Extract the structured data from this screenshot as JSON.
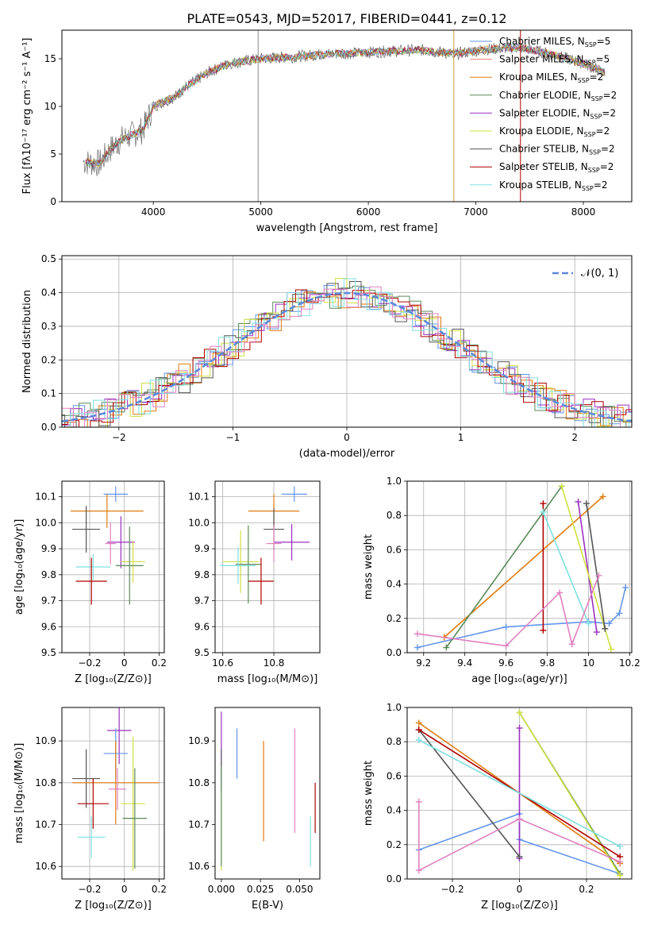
{
  "figure_title": "PLATE=0543, MJD=52017, FIBERID=0441, z=0.12",
  "colors": {
    "cornflower": "#6495ed",
    "salmon": "#fa8072",
    "orange": "#e07b10",
    "seagreen": "#5a8a5a",
    "purple": "#9b30c0",
    "yellow": "#d0e040",
    "darkgray": "#555555",
    "darkred": "#b00000",
    "cyan": "#80e0e0",
    "pink": "#e080c0",
    "grid": "#b0b0b0"
  },
  "chart_data": [
    {
      "id": "spectrum",
      "type": "line",
      "xlabel": "wavelength [Angstrom, rest frame]",
      "ylabel": "Flux [fλ10⁻¹⁷ erg cm⁻² s⁻¹ A⁻¹]",
      "xlim": [
        3150,
        8450
      ],
      "ylim": [
        0,
        18
      ],
      "xticks": [
        4000,
        5000,
        6000,
        7000,
        8000
      ],
      "yticks": [
        0,
        5,
        10,
        15
      ],
      "grid": false,
      "legend_position": "upper right",
      "observed": {
        "name": "",
        "x": [
          3350,
          3500,
          3600,
          3700,
          3800,
          3900,
          4000,
          4100,
          4200,
          4300,
          4500,
          4700,
          5000,
          5300,
          5600,
          5900,
          6200,
          6500,
          6800,
          7100,
          7400,
          7700,
          8000,
          8200
        ],
        "y": [
          4.2,
          4.0,
          5.5,
          6.5,
          7.0,
          7.5,
          10.0,
          10.5,
          11.0,
          12.0,
          13.5,
          14.5,
          15.0,
          15.2,
          15.5,
          15.6,
          15.8,
          15.9,
          15.5,
          16.0,
          16.2,
          15.5,
          14.5,
          13.5
        ]
      },
      "series": [
        {
          "name": "Chabrier MILES, N_SSP=5",
          "color": "#6495ed"
        },
        {
          "name": "Salpeter MILES, N_SSP=5",
          "color": "#fa8072"
        },
        {
          "name": "Kroupa MILES, N_SSP=2",
          "color": "#e07b10"
        },
        {
          "name": "Chabrier ELODIE, N_SSP=2",
          "color": "#5a8a5a"
        },
        {
          "name": "Salpeter ELODIE, N_SSP=2",
          "color": "#9b30c0"
        },
        {
          "name": "Kroupa ELODIE, N_SSP=2",
          "color": "#d0e040"
        },
        {
          "name": "Chabrier STELIB, N_SSP=2",
          "color": "#555555"
        },
        {
          "name": "Salpeter STELIB, N_SSP=2",
          "color": "#b00000"
        },
        {
          "name": "Kroupa STELIB, N_SSP=2",
          "color": "#80e0e0"
        }
      ]
    },
    {
      "id": "residuals",
      "type": "line",
      "xlabel": "(data-model)/error",
      "ylabel": "Normed distribution",
      "xlim": [
        -2.5,
        2.5
      ],
      "ylim": [
        0,
        0.51
      ],
      "xticks": [
        -2,
        -1,
        0,
        1,
        2
      ],
      "yticks": [
        0.0,
        0.1,
        0.2,
        0.3,
        0.4,
        0.5
      ],
      "grid": true,
      "legend": "𝒩(0, 1)",
      "legend_position": "upper right",
      "gaussian": {
        "mu": 0,
        "sigma": 1
      }
    },
    {
      "id": "age_vs_Z",
      "type": "scatter",
      "xlabel": "Z [log₁₀(Z/Z⊙)]",
      "ylabel": "age  [log₁₀(age/yr)]",
      "xlim": [
        -0.36,
        0.23
      ],
      "ylim": [
        9.5,
        10.16
      ],
      "xticks": [
        -0.2,
        0.0,
        0.2
      ],
      "yticks": [
        9.5,
        9.6,
        9.7,
        9.8,
        9.9,
        10.0,
        10.1
      ],
      "grid": true,
      "points": [
        {
          "x": -0.05,
          "y": 10.11,
          "xerr": 0.07,
          "yerr": 0.03,
          "color": "#6495ed"
        },
        {
          "x": -0.1,
          "y": 10.045,
          "xerr": 0.21,
          "yerr": 0.065,
          "color": "#e07b10"
        },
        {
          "x": -0.22,
          "y": 9.975,
          "xerr": 0.08,
          "yerr": 0.09,
          "color": "#555555"
        },
        {
          "x": -0.02,
          "y": 9.925,
          "xerr": 0.08,
          "yerr": 0.1,
          "color": "#9b30c0"
        },
        {
          "x": -0.08,
          "y": 9.92,
          "xerr": 0.03,
          "yerr": 0.08,
          "color": "#e080c0"
        },
        {
          "x": 0.05,
          "y": 9.85,
          "xerr": 0.07,
          "yerr": 0.08,
          "color": "#d0e040"
        },
        {
          "x": 0.03,
          "y": 9.835,
          "xerr": 0.08,
          "yerr": 0.15,
          "color": "#5a8a5a"
        },
        {
          "x": -0.18,
          "y": 9.83,
          "xerr": 0.1,
          "yerr": 0.05,
          "color": "#80e0e0"
        },
        {
          "x": -0.19,
          "y": 9.775,
          "xerr": 0.09,
          "yerr": 0.09,
          "color": "#b00000"
        }
      ]
    },
    {
      "id": "age_vs_mass",
      "type": "scatter",
      "xlabel": "mass [log₁₀(M/M⊙)]",
      "ylabel": "",
      "xlim": [
        10.57,
        10.98
      ],
      "ylim": [
        9.5,
        10.16
      ],
      "xticks": [
        10.6,
        10.8
      ],
      "yticks": [
        9.5,
        9.6,
        9.7,
        9.8,
        9.9,
        10.0,
        10.1
      ],
      "grid": true,
      "points": [
        {
          "x": 10.88,
          "y": 10.11,
          "xerr": 0.05,
          "yerr": 0.03,
          "color": "#6495ed"
        },
        {
          "x": 10.8,
          "y": 10.045,
          "xerr": 0.1,
          "yerr": 0.065,
          "color": "#e07b10"
        },
        {
          "x": 10.8,
          "y": 9.975,
          "xerr": 0.04,
          "yerr": 0.08,
          "color": "#555555"
        },
        {
          "x": 10.87,
          "y": 9.925,
          "xerr": 0.07,
          "yerr": 0.07,
          "color": "#9b30c0"
        },
        {
          "x": 10.8,
          "y": 9.92,
          "xerr": 0.03,
          "yerr": 0.07,
          "color": "#e080c0"
        },
        {
          "x": 10.67,
          "y": 9.85,
          "xerr": 0.07,
          "yerr": 0.12,
          "color": "#d0e040"
        },
        {
          "x": 10.7,
          "y": 9.84,
          "xerr": 0.05,
          "yerr": 0.15,
          "color": "#5a8a5a"
        },
        {
          "x": 10.66,
          "y": 9.835,
          "xerr": 0.07,
          "yerr": 0.07,
          "color": "#80e0e0"
        },
        {
          "x": 10.75,
          "y": 9.775,
          "xerr": 0.05,
          "yerr": 0.09,
          "color": "#b00000"
        }
      ]
    },
    {
      "id": "weight_vs_age",
      "type": "line",
      "xlabel": "age  [log₁₀(age/yr)]",
      "ylabel": "mass weight",
      "xlim": [
        9.12,
        10.21
      ],
      "ylim": [
        0,
        1.0
      ],
      "xticks": [
        9.2,
        9.4,
        9.6,
        9.8,
        10.0,
        10.2
      ],
      "yticks": [
        0.0,
        0.2,
        0.4,
        0.6,
        0.8,
        1.0
      ],
      "grid": true,
      "series": [
        {
          "color": "#6495ed",
          "x": [
            9.17,
            9.6,
            10.0,
            10.1,
            10.15,
            10.18
          ],
          "y": [
            0.03,
            0.15,
            0.18,
            0.17,
            0.23,
            0.38
          ]
        },
        {
          "color": "#e07b10",
          "x": [
            9.3,
            10.07
          ],
          "y": [
            0.09,
            0.91
          ]
        },
        {
          "color": "#5a8a5a",
          "x": [
            9.31,
            9.87
          ],
          "y": [
            0.03,
            0.97
          ]
        },
        {
          "color": "#9b30c0",
          "x": [
            9.95,
            10.04
          ],
          "y": [
            0.88,
            0.12
          ]
        },
        {
          "color": "#d0e040",
          "x": [
            9.87,
            10.11
          ],
          "y": [
            0.97,
            0.02
          ]
        },
        {
          "color": "#555555",
          "x": [
            9.99,
            10.08
          ],
          "y": [
            0.87,
            0.14
          ]
        },
        {
          "color": "#b00000",
          "x": [
            9.78,
            9.78
          ],
          "y": [
            0.13,
            0.87
          ]
        },
        {
          "color": "#80e0e0",
          "x": [
            9.78,
            10.0
          ],
          "y": [
            0.82,
            0.17
          ]
        },
        {
          "color": "#e080c0",
          "x": [
            9.17,
            9.6,
            9.86,
            9.92,
            10.05
          ],
          "y": [
            0.11,
            0.04,
            0.35,
            0.05,
            0.45
          ]
        }
      ]
    },
    {
      "id": "mass_vs_Z",
      "type": "scatter",
      "xlabel": "Z [log₁₀(Z/Z⊙)]",
      "ylabel": "mass [log₁₀(M/M⊙)]",
      "xlim": [
        -0.36,
        0.23
      ],
      "ylim": [
        10.57,
        10.98
      ],
      "xticks": [
        -0.2,
        0.0,
        0.2
      ],
      "yticks": [
        10.6,
        10.7,
        10.8,
        10.9
      ],
      "grid": true,
      "points": [
        {
          "x": -0.03,
          "y": 10.925,
          "xerr": 0.07,
          "yerr": 0.08,
          "color": "#9b30c0"
        },
        {
          "x": -0.05,
          "y": 10.87,
          "xerr": 0.07,
          "yerr": 0.06,
          "color": "#6495ed"
        },
        {
          "x": -0.22,
          "y": 10.81,
          "xerr": 0.08,
          "yerr": 0.07,
          "color": "#555555"
        },
        {
          "x": -0.05,
          "y": 10.8,
          "xerr": 0.25,
          "yerr": 0.1,
          "color": "#e07b10"
        },
        {
          "x": -0.04,
          "y": 10.785,
          "xerr": 0.05,
          "yerr": 0.05,
          "color": "#e080c0"
        },
        {
          "x": -0.18,
          "y": 10.75,
          "xerr": 0.09,
          "yerr": 0.06,
          "color": "#b00000"
        },
        {
          "x": 0.05,
          "y": 10.75,
          "xerr": 0.07,
          "yerr": 0.16,
          "color": "#d0e040"
        },
        {
          "x": 0.06,
          "y": 10.715,
          "xerr": 0.07,
          "yerr": 0.12,
          "color": "#5a8a5a"
        },
        {
          "x": -0.19,
          "y": 10.67,
          "xerr": 0.08,
          "yerr": 0.05,
          "color": "#80e0e0"
        }
      ]
    },
    {
      "id": "mass_vs_EBV",
      "type": "scatter",
      "xlabel": "E(B-V)",
      "ylabel": "",
      "xlim": [
        -0.004,
        0.063
      ],
      "ylim": [
        10.57,
        10.98
      ],
      "xticks": [
        0.0,
        0.025,
        0.05
      ],
      "xticklabels": [
        "0.000",
        "0.025",
        "0.050"
      ],
      "yticks": [
        10.6,
        10.7,
        10.8,
        10.9
      ],
      "grid": false,
      "points": [
        {
          "x": 0.0,
          "y": 10.89,
          "yerr": 0.08,
          "color": "#9b30c0"
        },
        {
          "x": 0.0,
          "y": 10.83,
          "yerr": 0.05,
          "color": "#555555"
        },
        {
          "x": 0.0,
          "y": 10.68,
          "yerr": 0.09,
          "color": "#d0e040"
        },
        {
          "x": 0.0,
          "y": 10.72,
          "yerr": 0.12,
          "color": "#5a8a5a"
        },
        {
          "x": 0.01,
          "y": 10.87,
          "yerr": 0.06,
          "color": "#6495ed"
        },
        {
          "x": 0.027,
          "y": 10.78,
          "yerr": 0.12,
          "color": "#e07b10"
        },
        {
          "x": 0.047,
          "y": 10.805,
          "yerr": 0.125,
          "color": "#e080c0"
        },
        {
          "x": 0.057,
          "y": 10.66,
          "yerr": 0.06,
          "color": "#80e0e0"
        },
        {
          "x": 0.06,
          "y": 10.74,
          "yerr": 0.06,
          "color": "#b00000"
        }
      ]
    },
    {
      "id": "weight_vs_Z",
      "type": "line",
      "xlabel": "Z [log₁₀(Z/Z⊙)]",
      "ylabel": "mass weight",
      "xlim": [
        -0.335,
        0.335
      ],
      "ylim": [
        0,
        1.0
      ],
      "xticks": [
        -0.2,
        0.0,
        0.2
      ],
      "yticks": [
        0.0,
        0.2,
        0.4,
        0.6,
        0.8,
        1.0
      ],
      "grid": true,
      "series": [
        {
          "color": "#6495ed",
          "x": [
            -0.3,
            0.0,
            0.0,
            0.3
          ],
          "y": [
            0.17,
            0.38,
            0.23,
            0.03
          ]
        },
        {
          "color": "#e07b10",
          "x": [
            -0.3,
            0.3
          ],
          "y": [
            0.91,
            0.09
          ]
        },
        {
          "color": "#5a8a5a",
          "x": [
            0.0,
            0.3
          ],
          "y": [
            0.97,
            0.03
          ]
        },
        {
          "color": "#9b30c0",
          "x": [
            0.0,
            0.0
          ],
          "y": [
            0.12,
            0.88
          ]
        },
        {
          "color": "#d0e040",
          "x": [
            0.0,
            0.3
          ],
          "y": [
            0.97,
            0.02
          ]
        },
        {
          "color": "#555555",
          "x": [
            -0.3,
            0.0
          ],
          "y": [
            0.87,
            0.13
          ]
        },
        {
          "color": "#b00000",
          "x": [
            -0.3,
            0.3
          ],
          "y": [
            0.87,
            0.13
          ]
        },
        {
          "color": "#80e0e0",
          "x": [
            -0.3,
            0.3
          ],
          "y": [
            0.81,
            0.19
          ]
        },
        {
          "color": "#e080c0",
          "x": [
            -0.3,
            -0.3,
            0.0,
            0.3
          ],
          "y": [
            0.45,
            0.05,
            0.35,
            0.1
          ]
        }
      ]
    }
  ]
}
